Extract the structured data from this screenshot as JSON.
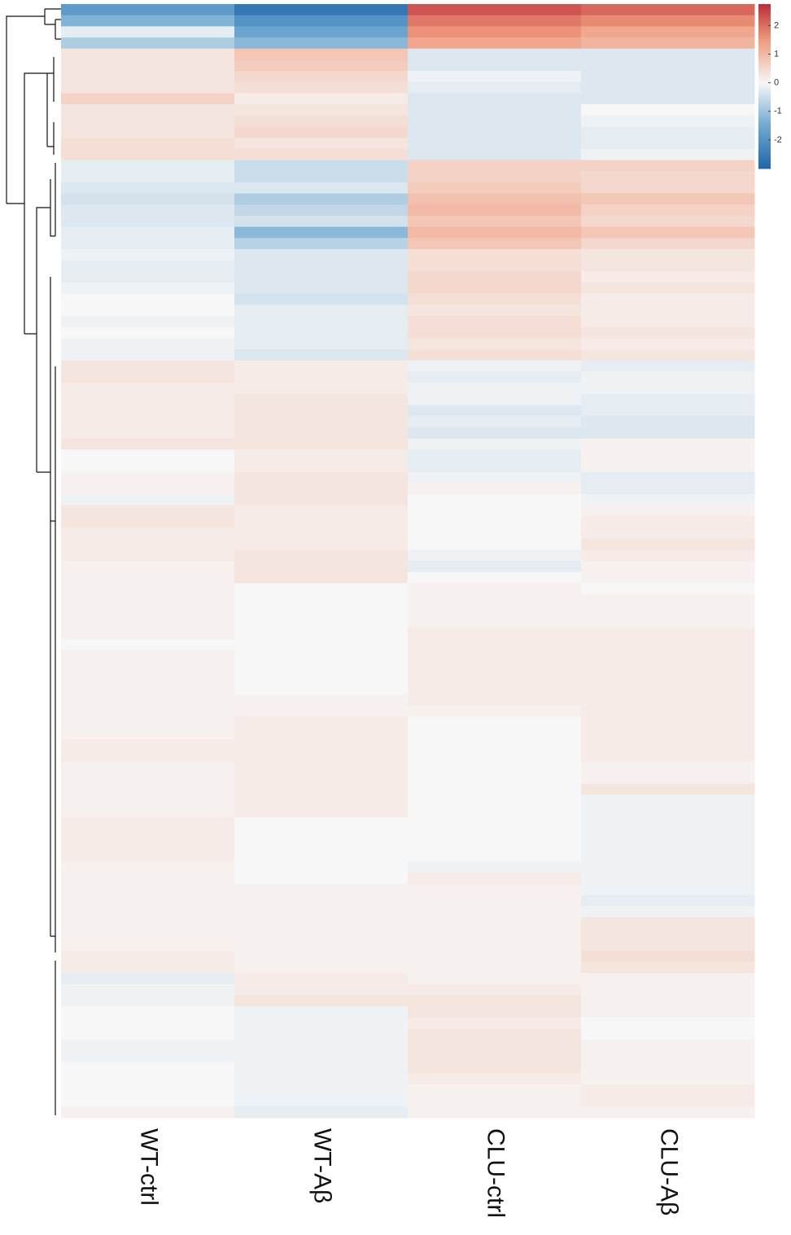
{
  "chart_data": {
    "type": "heatmap",
    "series": [
      {
        "name": "WT-ctrl",
        "values": [
          -1.8,
          -1.3,
          -0.2,
          -0.8,
          0.3,
          0.3,
          0.3,
          0.3,
          0.6,
          0.3,
          0.3,
          0.3,
          0.4,
          0.4,
          -0.2,
          -0.2,
          -0.3,
          -0.4,
          -0.3,
          -0.3,
          -0.2,
          -0.2,
          -0.1,
          -0.2,
          -0.2,
          -0.1,
          0,
          0,
          -0.1,
          0,
          -0.1,
          -0.1,
          0.3,
          0.3,
          0.2,
          0.2,
          0.2,
          0.2,
          0.2,
          0.3,
          0,
          0,
          0.1,
          0.1,
          -0.1,
          0.3,
          0.3,
          0.2,
          0.2,
          0.2,
          0.1,
          0.1,
          0.1,
          0.1,
          0.1,
          0.1,
          0.1,
          0,
          0.1,
          0.1,
          0.1,
          0.1,
          0.1,
          0.1,
          0.1,
          0.1,
          0.2,
          0.2,
          0.1,
          0.1,
          0.1,
          0.1,
          0.1,
          0.2,
          0.2,
          0.2,
          0.2,
          0.1,
          0.1,
          0.1,
          0.1,
          0.1,
          0.1,
          0.1,
          0.1,
          0.2,
          0.2,
          -0.2,
          -0.1,
          -0.1,
          0,
          0,
          0,
          -0.1,
          -0.1,
          0,
          0,
          0,
          0,
          0.1
        ]
      },
      {
        "name": "WT-Aβ",
        "values": [
          -2.6,
          -2.0,
          -1.6,
          -1.2,
          0.8,
          0.7,
          0.5,
          0.4,
          0.2,
          0.3,
          0.4,
          0.5,
          0.3,
          0.4,
          -0.5,
          -0.5,
          -0.3,
          -0.8,
          -0.6,
          -0.4,
          -1.2,
          -0.7,
          -0.3,
          -0.3,
          -0.3,
          -0.3,
          -0.4,
          -0.2,
          -0.2,
          -0.2,
          -0.2,
          -0.3,
          0.2,
          0.2,
          0.2,
          0.3,
          0.3,
          0.3,
          0.3,
          0.3,
          0.2,
          0.2,
          0.3,
          0.3,
          0.3,
          0.2,
          0.2,
          0.2,
          0.2,
          0.3,
          0.3,
          0.3,
          0,
          0,
          0,
          0,
          0,
          0,
          0,
          0,
          0,
          0,
          0.1,
          0.1,
          0.2,
          0.2,
          0.2,
          0.2,
          0.2,
          0.2,
          0.2,
          0.2,
          0.2,
          0,
          0,
          0,
          0,
          0,
          0,
          0.1,
          0.1,
          0.1,
          0.1,
          0.1,
          0.1,
          0.1,
          0.1,
          0.2,
          0.2,
          0.3,
          -0.1,
          -0.1,
          -0.1,
          -0.1,
          -0.1,
          -0.1,
          -0.1,
          -0.1,
          -0.1,
          -0.2
        ]
      },
      {
        "name": "CLU-ctrl",
        "values": [
          2.3,
          1.9,
          1.6,
          1.3,
          -0.3,
          -0.3,
          -0.1,
          -0.2,
          -0.3,
          -0.3,
          -0.3,
          -0.3,
          -0.3,
          -0.3,
          0.6,
          0.6,
          0.7,
          0.9,
          1.0,
          0.8,
          1.0,
          0.8,
          0.4,
          0.4,
          0.5,
          0.5,
          0.4,
          0.3,
          0.4,
          0.4,
          0.3,
          0.4,
          -0.1,
          -0.2,
          -0.1,
          -0.1,
          -0.3,
          -0.2,
          -0.3,
          -0.1,
          -0.2,
          -0.2,
          -0.1,
          0.1,
          0,
          0,
          0,
          0,
          0,
          -0.1,
          -0.2,
          0,
          0.1,
          0.1,
          0.1,
          0.1,
          0.2,
          0.2,
          0.2,
          0.2,
          0.2,
          0.2,
          0.2,
          0.1,
          0,
          0,
          0,
          0,
          0,
          0,
          0,
          0,
          0,
          0,
          0,
          0,
          0,
          -0.1,
          0.2,
          0.1,
          0.1,
          0.1,
          0.1,
          0.1,
          0.1,
          0.1,
          0.1,
          0.1,
          0.2,
          0.3,
          0.3,
          0.2,
          0.3,
          0.3,
          0.3,
          0.3,
          0.2,
          0.1,
          0.1,
          0.1
        ]
      },
      {
        "name": "CLU-Aβ",
        "values": [
          2.1,
          1.7,
          1.3,
          1.1,
          -0.3,
          -0.3,
          -0.3,
          -0.3,
          -0.3,
          0,
          -0.1,
          -0.2,
          -0.2,
          -0.1,
          0.6,
          0.5,
          0.5,
          0.8,
          0.6,
          0.5,
          0.8,
          0.5,
          0.3,
          0.3,
          0.2,
          0.3,
          0.2,
          0.2,
          0.2,
          0.3,
          0.2,
          0.3,
          -0.2,
          -0.1,
          -0.1,
          -0.2,
          -0.2,
          -0.3,
          -0.3,
          0.1,
          0.1,
          0.1,
          -0.2,
          -0.2,
          -0.1,
          0.1,
          0.2,
          0.2,
          0.3,
          0.2,
          0.1,
          0.1,
          0,
          0.1,
          0.1,
          0.1,
          0.2,
          0.2,
          0.2,
          0.2,
          0.2,
          0.2,
          0.2,
          0.2,
          0.2,
          0.2,
          0.2,
          0.2,
          0.1,
          0.1,
          0.3,
          -0.1,
          -0.1,
          -0.1,
          -0.1,
          -0.1,
          -0.1,
          -0.1,
          -0.1,
          -0.1,
          -0.2,
          -0.1,
          0.3,
          0.3,
          0.3,
          0.4,
          0.3,
          0.1,
          0.1,
          0.1,
          0.1,
          0,
          0,
          0.1,
          0.1,
          0.1,
          0.1,
          0.2,
          0.2,
          0.1
        ]
      }
    ],
    "colors": [
      "#2166ac",
      "#6fa8d1",
      "#f7f7f7",
      "#ef9b7d",
      "#b2182b"
    ],
    "zlim": [
      -3.0,
      2.75
    ],
    "zticks": [
      2,
      1,
      0,
      -1,
      -2
    ]
  }
}
